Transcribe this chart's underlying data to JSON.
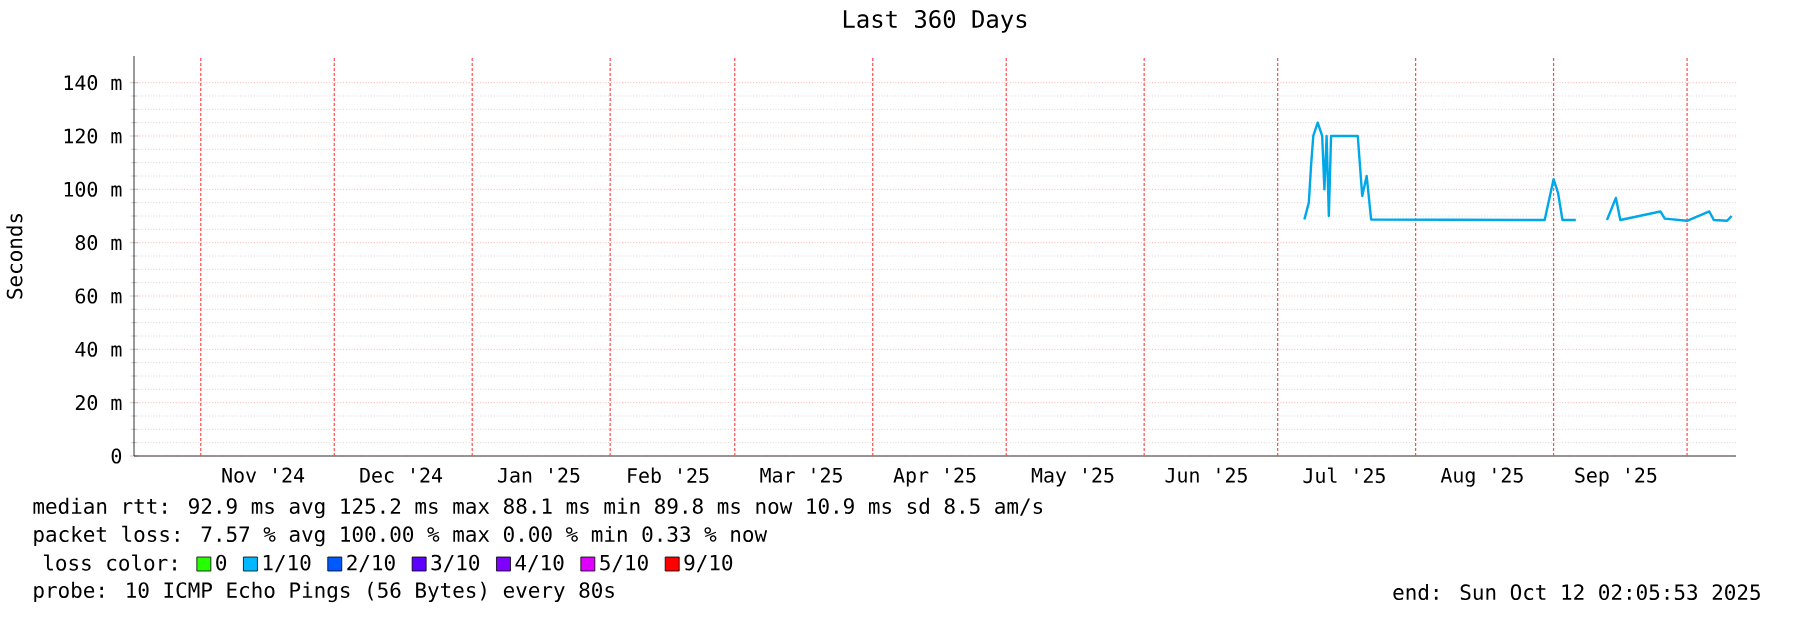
{
  "chart_data": {
    "type": "line",
    "title": "Last 360 Days",
    "ylabel": "Seconds",
    "x": [
      "2025-07-07",
      "2025-07-08",
      "2025-07-08T12:00",
      "2025-07-09",
      "2025-07-10",
      "2025-07-11",
      "2025-07-11T12:00",
      "2025-07-12",
      "2025-07-12T12:00",
      "2025-07-13",
      "2025-07-19",
      "2025-07-20",
      "2025-07-21",
      "2025-07-22",
      "2025-08-30",
      "2025-09-01",
      "2025-09-02",
      "2025-09-03",
      "2025-09-06",
      "2025-09-09",
      "2025-09-13",
      "2025-09-15",
      "2025-09-16",
      "2025-09-25",
      "2025-09-26",
      "2025-10-01",
      "2025-10-06",
      "2025-10-07",
      "2025-10-10",
      "2025-10-11"
    ],
    "series": [
      {
        "color": "#00a8e8",
        "values": [
          88.7,
          95,
          108.8,
          120,
          125,
          120,
          100,
          120,
          90,
          120,
          120,
          97.5,
          105,
          88.7,
          88.5,
          103.8,
          98.7,
          88.5,
          88.5,
          null,
          88.5,
          96.8,
          88.5,
          91.7,
          89,
          88.2,
          91.7,
          88.5,
          88.2,
          90
        ]
      },
      {
        "name": "0",
        "color": "#26ff00",
        "values": [
          null,
          null,
          null,
          null,
          null,
          null,
          null,
          null,
          null,
          null,
          null,
          null,
          null,
          null,
          null,
          null,
          null,
          null,
          null,
          null,
          null,
          null,
          null,
          null,
          null,
          null,
          null,
          null,
          null,
          null
        ]
      },
      {
        "name": "1/10",
        "color": "#00b8ff",
        "values": [
          null,
          null,
          null,
          null,
          null,
          null,
          null,
          null,
          null,
          null,
          null,
          null,
          null,
          null,
          null,
          null,
          null,
          null,
          null,
          null,
          null,
          null,
          null,
          null,
          null,
          null,
          null,
          null,
          null,
          null
        ]
      },
      {
        "name": "2/10",
        "color": "#0059ff",
        "values": [
          null,
          null,
          null,
          null,
          null,
          null,
          null,
          null,
          null,
          null,
          null,
          null,
          null,
          null,
          null,
          null,
          null,
          null,
          null,
          null,
          null,
          null,
          null,
          null,
          null,
          null,
          null,
          null,
          null,
          null
        ]
      },
      {
        "name": "3/10",
        "color": "#5e00ff",
        "values": [
          null,
          null,
          null,
          null,
          null,
          null,
          null,
          null,
          null,
          null,
          null,
          null,
          null,
          null,
          null,
          null,
          null,
          null,
          null,
          null,
          null,
          null,
          null,
          null,
          null,
          null,
          null,
          null,
          null,
          null
        ]
      },
      {
        "name": "4/10",
        "color": "#7e00ff",
        "values": [
          null,
          null,
          null,
          null,
          null,
          null,
          null,
          null,
          null,
          null,
          null,
          null,
          null,
          null,
          null,
          null,
          null,
          null,
          null,
          null,
          null,
          null,
          null,
          null,
          null,
          null,
          null,
          null,
          null,
          null
        ]
      },
      {
        "name": "5/10",
        "color": "#dd00ff",
        "values": [
          null,
          null,
          null,
          null,
          null,
          null,
          null,
          null,
          null,
          null,
          null,
          null,
          null,
          null,
          null,
          null,
          null,
          null,
          null,
          null,
          null,
          null,
          null,
          null,
          null,
          null,
          null,
          null,
          null,
          null
        ]
      },
      {
        "name": "9/10",
        "color": "#ff0000",
        "values": [
          null,
          null,
          null,
          null,
          null,
          null,
          null,
          null,
          null,
          null,
          null,
          null,
          null,
          null,
          null,
          null,
          null,
          null,
          null,
          null,
          null,
          null,
          null,
          null,
          null,
          null,
          null,
          null,
          null,
          null
        ]
      }
    ],
    "legend_title": "loss color:",
    "legend": "bottom",
    "xlim": [
      "2024-10-17",
      "2025-10-12"
    ],
    "xticks": [
      {
        "value": "2024-11-01",
        "label": null
      },
      {
        "value": "2024-11-15",
        "label": "Nov '24"
      },
      {
        "value": "2024-12-01",
        "label": null
      },
      {
        "value": "2024-12-16",
        "label": "Dec '24"
      },
      {
        "value": "2025-01-01",
        "label": null
      },
      {
        "value": "2025-01-16",
        "label": "Jan '25"
      },
      {
        "value": "2025-02-01",
        "label": null
      },
      {
        "value": "2025-02-14",
        "label": "Feb '25"
      },
      {
        "value": "2025-03-01",
        "label": null
      },
      {
        "value": "2025-03-16",
        "label": "Mar '25"
      },
      {
        "value": "2025-04-01",
        "label": null
      },
      {
        "value": "2025-04-15",
        "label": "Apr '25"
      },
      {
        "value": "2025-05-01",
        "label": null
      },
      {
        "value": "2025-05-16",
        "label": "May '25"
      },
      {
        "value": "2025-06-01",
        "label": null
      },
      {
        "value": "2025-06-15",
        "label": "Jun '25"
      },
      {
        "value": "2025-07-01",
        "label": null
      },
      {
        "value": "2025-07-16",
        "label": "Jul '25"
      },
      {
        "value": "2025-08-01",
        "label": null
      },
      {
        "value": "2025-08-16",
        "label": "Aug '25"
      },
      {
        "value": "2025-09-01",
        "label": null
      },
      {
        "value": "2025-09-15",
        "label": "Sep '25"
      },
      {
        "value": "2025-10-01",
        "label": null
      }
    ],
    "ylim": [
      0,
      150
    ],
    "yticks": [
      0,
      {
        "value": 20,
        "label": "20 m"
      },
      {
        "value": 40,
        "label": "40 m"
      },
      {
        "value": 60,
        "label": "60 m"
      },
      {
        "value": 80,
        "label": "80 m"
      },
      {
        "value": 100,
        "label": "100 m"
      },
      {
        "value": 120,
        "label": "120 m"
      },
      {
        "value": 140,
        "label": "140 m"
      }
    ],
    "grid": true,
    "annotations": [
      "median rtt:  92.9 ms avg  125.2 ms max  88.1 ms min  89.8 ms now  10.9 ms sd  8.5   am/s",
      "packet loss: 7.57 % avg  100.00 % max  0.00 % min  0.33 % now",
      "probe:       10 ICMP Echo Pings (56 Bytes) every 80s",
      "end: Sun Oct 12 02:05:53 2025"
    ]
  }
}
